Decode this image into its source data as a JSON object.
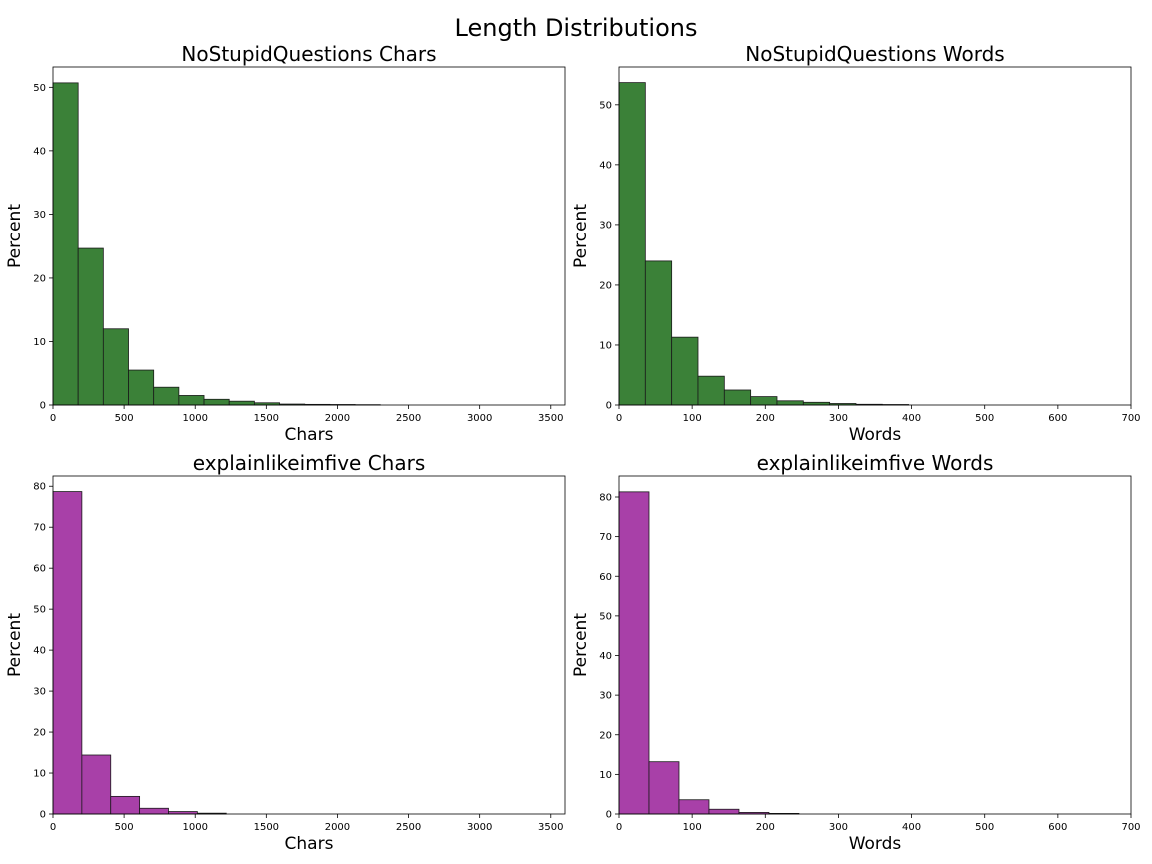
{
  "figure": {
    "suptitle": "Length Distributions"
  },
  "chart_data": [
    {
      "type": "bar",
      "title": "NoStupidQuestions Chars",
      "xlabel": "Chars",
      "ylabel": "Percent",
      "xlim": [
        0,
        3600
      ],
      "ylim": [
        0,
        53.2
      ],
      "xticks": [
        0,
        500,
        1000,
        1500,
        2000,
        2500,
        3000,
        3500
      ],
      "yticks": [
        0,
        10,
        20,
        30,
        40,
        50
      ],
      "bin_edges": [
        0,
        177,
        354,
        531,
        708,
        885,
        1062,
        1239,
        1416,
        1593,
        1770,
        1947,
        2124,
        2301
      ],
      "values": [
        50.7,
        24.7,
        12.0,
        5.5,
        2.8,
        1.5,
        0.9,
        0.6,
        0.35,
        0.15,
        0.1,
        0.08,
        0.05
      ],
      "color": "#3b8138"
    },
    {
      "type": "bar",
      "title": "NoStupidQuestions Words",
      "xlabel": "Words",
      "ylabel": "Percent",
      "xlim": [
        0,
        700
      ],
      "ylim": [
        0,
        56.3
      ],
      "xticks": [
        0,
        100,
        200,
        300,
        400,
        500,
        600,
        700
      ],
      "yticks": [
        0,
        10,
        20,
        30,
        40,
        50
      ],
      "bin_edges": [
        0,
        36,
        72,
        108,
        144,
        180,
        216,
        252,
        288,
        324,
        360,
        396
      ],
      "values": [
        53.7,
        24.0,
        11.3,
        4.8,
        2.5,
        1.4,
        0.7,
        0.45,
        0.25,
        0.12,
        0.08
      ],
      "color": "#3b8138"
    },
    {
      "type": "bar",
      "title": "explainlikeimfive Chars",
      "xlabel": "Chars",
      "ylabel": "Percent",
      "xlim": [
        0,
        3600
      ],
      "ylim": [
        0,
        82.5
      ],
      "xticks": [
        0,
        500,
        1000,
        1500,
        2000,
        2500,
        3000,
        3500
      ],
      "yticks": [
        0,
        10,
        20,
        30,
        40,
        50,
        60,
        70,
        80
      ],
      "bin_edges": [
        0,
        203,
        406,
        609,
        812,
        1015,
        1218
      ],
      "values": [
        78.7,
        14.4,
        4.3,
        1.4,
        0.6,
        0.2
      ],
      "color": "#a840a8"
    },
    {
      "type": "bar",
      "title": "explainlikeimfive Words",
      "xlabel": "Words",
      "ylabel": "Percent",
      "xlim": [
        0,
        700
      ],
      "ylim": [
        0,
        85.3
      ],
      "xticks": [
        0,
        100,
        200,
        300,
        400,
        500,
        600,
        700
      ],
      "yticks": [
        0,
        10,
        20,
        30,
        40,
        50,
        60,
        70,
        80
      ],
      "bin_edges": [
        0,
        41,
        82,
        123,
        164,
        205,
        246
      ],
      "values": [
        81.3,
        13.2,
        3.6,
        1.2,
        0.4,
        0.15
      ],
      "color": "#a840a8"
    }
  ]
}
